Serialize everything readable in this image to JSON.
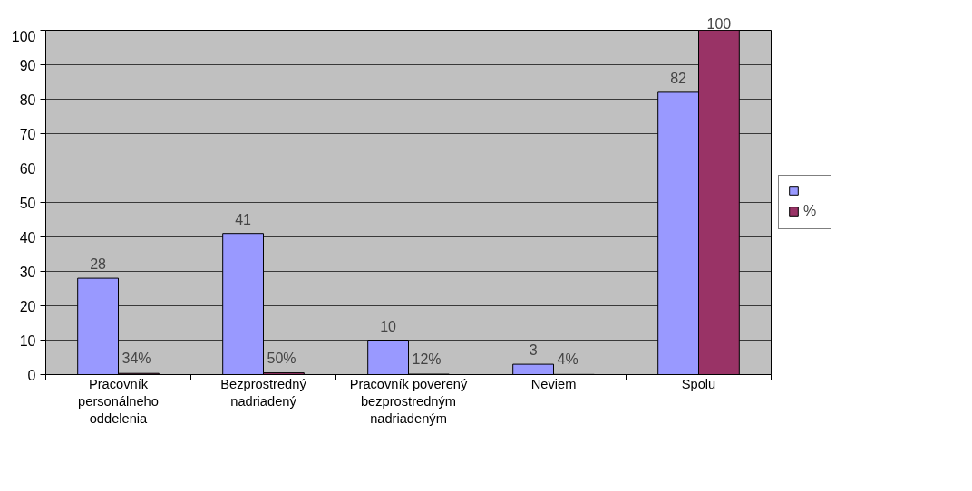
{
  "chart_data": {
    "type": "bar",
    "categories": [
      "Pracovník\npersonálneho\noddelenia",
      "Bezprostredný\nnadriadený",
      "Pracovník poverený\nbezprostredným\nnadriadeným",
      "Neviem",
      "Spolu"
    ],
    "series": [
      {
        "color": "#9999ff",
        "values": [
          28,
          41,
          10,
          3,
          82
        ],
        "value_labels": [
          "28",
          "41",
          "10",
          "3",
          "82"
        ]
      },
      {
        "name": "%",
        "color": "#993366",
        "values": [
          0.34,
          0.5,
          0.12,
          0.04,
          100
        ],
        "value_labels": [
          "34%",
          "50%",
          "12%",
          "4%",
          "100"
        ]
      }
    ],
    "ylim": [
      0,
      100
    ],
    "yticks": [
      0,
      10,
      20,
      30,
      40,
      50,
      60,
      70,
      80,
      90,
      100
    ],
    "grid": "y",
    "legend": "right"
  }
}
